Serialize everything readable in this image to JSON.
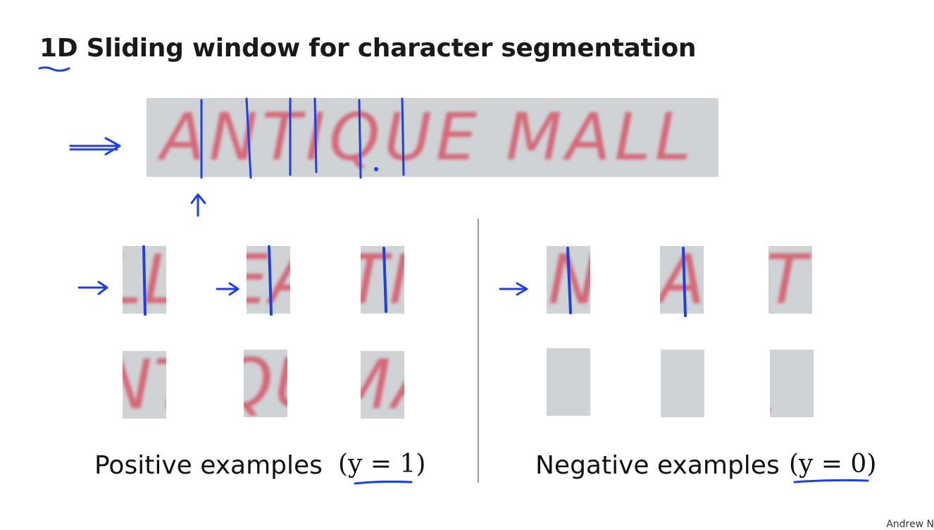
{
  "slide": {
    "title": "1D Sliding window for character segmentation",
    "banner_text": "ANTIQUE MALL",
    "positive_label": "Positive examples",
    "positive_math": "(y = 1)",
    "negative_label": "Negative examples",
    "negative_math": "(y = 0)",
    "credit": "Andrew N"
  },
  "positive_patches": [
    {
      "text": "LL"
    },
    {
      "text": "EA"
    },
    {
      "text": "TI"
    },
    {
      "text": "NT"
    },
    {
      "text": "QU"
    },
    {
      "text": "MA"
    }
  ],
  "negative_patches": [
    {
      "text": "N"
    },
    {
      "text": "A"
    },
    {
      "text": "T"
    },
    {
      "text": ""
    },
    {
      "text": ""
    },
    {
      "text": "."
    }
  ],
  "colors": {
    "ink": "#1f3fe0",
    "patch_bg": "#cfd3d5",
    "text_red": "#d56878"
  }
}
